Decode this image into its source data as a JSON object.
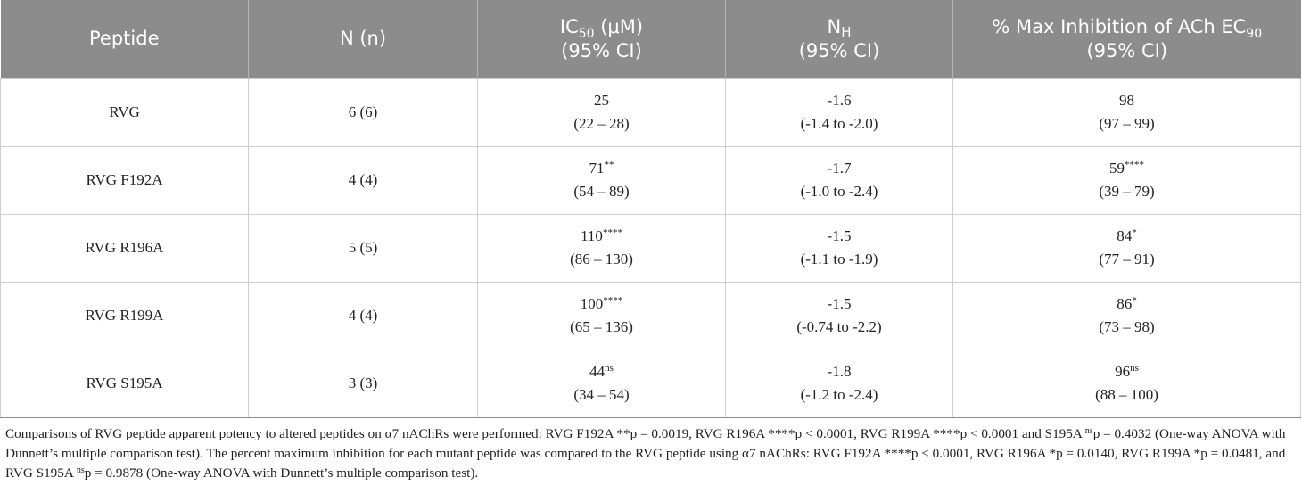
{
  "table": {
    "headers": {
      "peptide": "Peptide",
      "n": "N (n)",
      "ic50_pre": "IC",
      "ic50_sub": "50",
      "ic50_unit": " (μM)",
      "ic50_ci": "(95% CI)",
      "nh_pre": "N",
      "nh_sub": "H",
      "nh_ci": "(95% CI)",
      "max_pre": "% Max Inhibition of ACh EC",
      "max_sub": "90",
      "max_ci": "(95% CI)"
    },
    "rows": [
      {
        "peptide": "RVG",
        "n": "6 (6)",
        "ic50": "25",
        "ic50_mark": "",
        "ic50_ci": "(22 – 28)",
        "nh": "-1.6",
        "nh_ci": "(-1.4 to -2.0)",
        "max": "98",
        "max_mark": "",
        "max_ci": "(97 – 99)"
      },
      {
        "peptide": "RVG F192A",
        "n": "4 (4)",
        "ic50": "71",
        "ic50_mark": "**",
        "ic50_ci": "(54 – 89)",
        "nh": "-1.7",
        "nh_ci": "(-1.0 to -2.4)",
        "max": "59",
        "max_mark": "****",
        "max_ci": "(39 – 79)"
      },
      {
        "peptide": "RVG R196A",
        "n": "5 (5)",
        "ic50": "110",
        "ic50_mark": "****",
        "ic50_ci": "(86 – 130)",
        "nh": "-1.5",
        "nh_ci": "(-1.1 to -1.9)",
        "max": "84",
        "max_mark": "*",
        "max_ci": "(77 – 91)"
      },
      {
        "peptide": "RVG R199A",
        "n": "4 (4)",
        "ic50": "100",
        "ic50_mark": "****",
        "ic50_ci": "(65 – 136)",
        "nh": "-1.5",
        "nh_ci": "(-0.74 to -2.2)",
        "max": "86",
        "max_mark": "*",
        "max_ci": "(73 – 98)"
      },
      {
        "peptide": "RVG S195A",
        "n": "3 (3)",
        "ic50": "44",
        "ic50_mark": "ns",
        "ic50_ci": "(34 – 54)",
        "nh": "-1.8",
        "nh_ci": "(-1.2 to -2.4)",
        "max": "96",
        "max_mark": "ns",
        "max_ci": "(88 – 100)"
      }
    ]
  },
  "footnote": {
    "part1": "Comparisons of RVG peptide apparent potency to altered peptides on α7 nAChRs were performed: RVG F192A **p = 0.0019, RVG R196A ****p < 0.0001, RVG R199A ****p < 0.0001 and S195A ",
    "mark1": "ns",
    "part2": "p = 0.4032 (One-way ANOVA with Dunnett’s multiple comparison test). The percent maximum inhibition for each mutant peptide was compared to the RVG peptide using α7 nAChRs: RVG F192A ****p < 0.0001, RVG R196A *p = 0.0140, RVG R199A *p = 0.0481, and RVG S195A ",
    "mark2": "ns",
    "part3": "p = 0.9878 (One-way ANOVA with Dunnett’s multiple comparison test)."
  }
}
